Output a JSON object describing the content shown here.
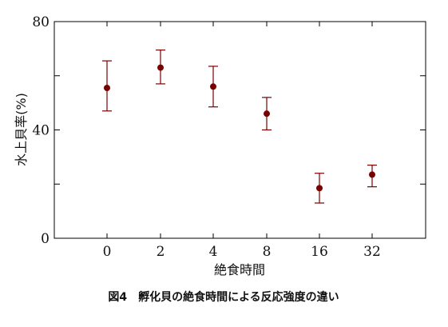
{
  "chart_data": {
    "type": "scatter",
    "categories": [
      "0",
      "2",
      "4",
      "8",
      "16",
      "32"
    ],
    "values": [
      55.5,
      63,
      56,
      46,
      18.5,
      23.5
    ],
    "error_upper": [
      65.5,
      69.5,
      63.5,
      52,
      24,
      27
    ],
    "error_lower": [
      47,
      57,
      48.5,
      40,
      13,
      19
    ],
    "xlabel": "絶食時間",
    "ylabel": "水上貝率(%)",
    "ylim": [
      0,
      80
    ],
    "yticks": [
      "0",
      "40",
      "80"
    ],
    "grid": false,
    "marker_color": "#7a0000",
    "caption": "図4　孵化貝の絶食時間による反応強度の違い"
  }
}
